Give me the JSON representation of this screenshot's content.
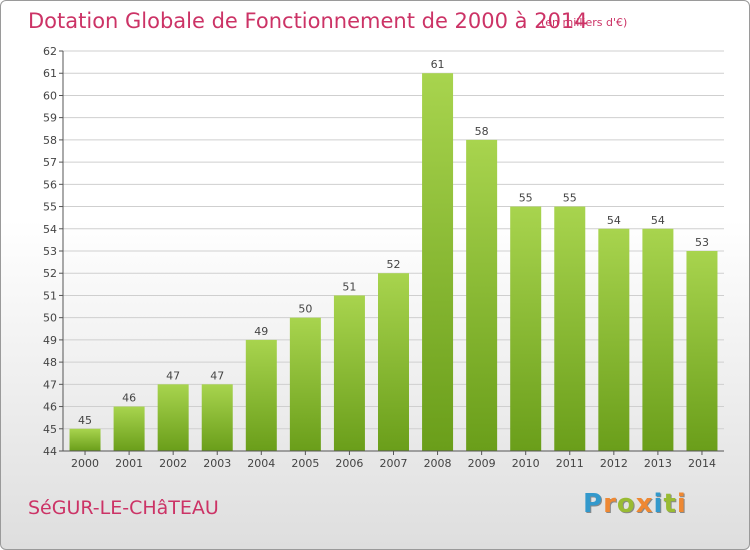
{
  "header": {
    "title": "Dotation Globale de Fonctionnement de 2000 à 2014",
    "subtitle": "(en milliers d'€)"
  },
  "footer": {
    "commune": "SéGUR-LE-CHâTEAU",
    "logo": [
      "P",
      "r",
      "o",
      "x",
      "i",
      "t",
      "i"
    ],
    "logo_colors": [
      "#3399cc",
      "#ee8833",
      "#99bb33",
      "#ee8833",
      "#3399cc",
      "#99bb33",
      "#ee8833"
    ]
  },
  "colors": {
    "title": "#cc3366",
    "bar_top": "#a8d44e",
    "bar_bottom": "#6a9e1a",
    "axis": "#555555",
    "grid": "#cfcfcf"
  },
  "chart_data": {
    "type": "bar",
    "title": "Dotation Globale de Fonctionnement de 2000 à 2014",
    "subtitle": "(en milliers d'€)",
    "xlabel": "",
    "ylabel": "",
    "categories": [
      "2000",
      "2001",
      "2002",
      "2003",
      "2004",
      "2005",
      "2006",
      "2007",
      "2008",
      "2009",
      "2010",
      "2011",
      "2012",
      "2013",
      "2014"
    ],
    "values": [
      45,
      46,
      47,
      47,
      49,
      50,
      51,
      52,
      61,
      58,
      55,
      55,
      54,
      54,
      53
    ],
    "ylim": [
      44,
      62
    ],
    "yticks": [
      44,
      45,
      46,
      47,
      48,
      49,
      50,
      51,
      52,
      53,
      54,
      55,
      56,
      57,
      58,
      59,
      60,
      61,
      62
    ],
    "grid": true,
    "data_labels": true
  }
}
